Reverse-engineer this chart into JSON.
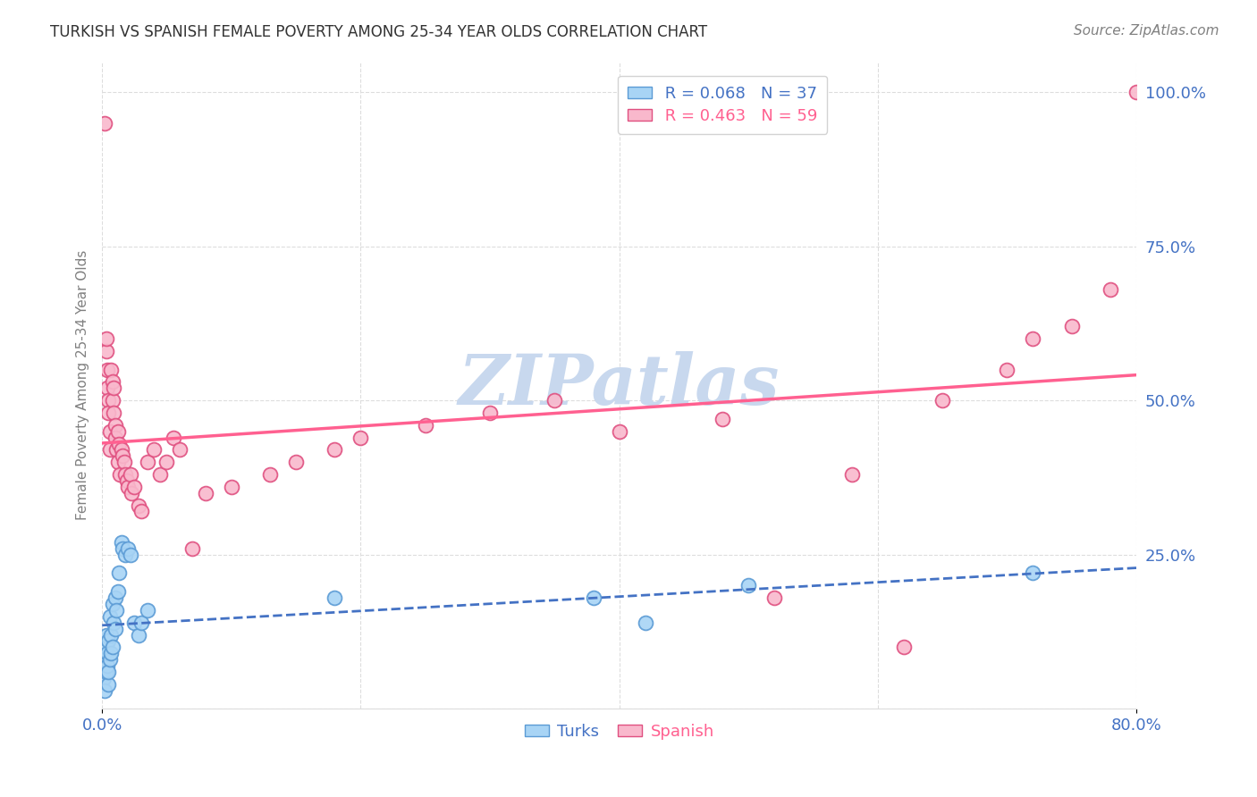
{
  "title": "TURKISH VS SPANISH FEMALE POVERTY AMONG 25-34 YEAR OLDS CORRELATION CHART",
  "source": "Source: ZipAtlas.com",
  "ylabel": "Female Poverty Among 25-34 Year Olds",
  "xlim": [
    0.0,
    0.8
  ],
  "ylim": [
    0.0,
    1.05
  ],
  "yticks_right": [
    0.0,
    0.25,
    0.5,
    0.75,
    1.0
  ],
  "yticklabels_right": [
    "",
    "25.0%",
    "50.0%",
    "75.0%",
    "100.0%"
  ],
  "turks_color": "#a8d4f5",
  "spanish_color": "#f9b8cc",
  "turks_edge_color": "#5b9bd5",
  "spanish_edge_color": "#e05080",
  "turks_line_color": "#4472C4",
  "spanish_line_color": "#FF6090",
  "turks_R": 0.068,
  "turks_N": 37,
  "spanish_R": 0.463,
  "spanish_N": 59,
  "watermark": "ZIPatlas",
  "watermark_color": "#c8d8ee",
  "background_color": "#ffffff",
  "grid_color": "#dddddd",
  "turks_x": [
    0.001,
    0.002,
    0.002,
    0.003,
    0.003,
    0.003,
    0.004,
    0.004,
    0.005,
    0.005,
    0.005,
    0.006,
    0.006,
    0.007,
    0.007,
    0.008,
    0.008,
    0.009,
    0.01,
    0.01,
    0.011,
    0.012,
    0.013,
    0.015,
    0.016,
    0.018,
    0.02,
    0.022,
    0.025,
    0.028,
    0.03,
    0.035,
    0.18,
    0.38,
    0.42,
    0.5,
    0.72
  ],
  "turks_y": [
    0.05,
    0.03,
    0.08,
    0.06,
    0.1,
    0.12,
    0.07,
    0.09,
    0.11,
    0.04,
    0.06,
    0.15,
    0.08,
    0.12,
    0.09,
    0.17,
    0.1,
    0.14,
    0.13,
    0.18,
    0.16,
    0.19,
    0.22,
    0.27,
    0.26,
    0.25,
    0.26,
    0.25,
    0.14,
    0.12,
    0.14,
    0.16,
    0.18,
    0.18,
    0.14,
    0.2,
    0.22
  ],
  "spanish_x": [
    0.002,
    0.003,
    0.003,
    0.004,
    0.004,
    0.005,
    0.005,
    0.006,
    0.006,
    0.007,
    0.008,
    0.008,
    0.009,
    0.009,
    0.01,
    0.01,
    0.011,
    0.012,
    0.012,
    0.013,
    0.014,
    0.015,
    0.016,
    0.017,
    0.018,
    0.019,
    0.02,
    0.022,
    0.023,
    0.025,
    0.028,
    0.03,
    0.035,
    0.04,
    0.045,
    0.05,
    0.055,
    0.06,
    0.07,
    0.08,
    0.1,
    0.13,
    0.15,
    0.18,
    0.2,
    0.25,
    0.3,
    0.35,
    0.4,
    0.48,
    0.52,
    0.58,
    0.62,
    0.65,
    0.7,
    0.72,
    0.75,
    0.78,
    0.8
  ],
  "spanish_y": [
    0.95,
    0.58,
    0.6,
    0.52,
    0.55,
    0.5,
    0.48,
    0.45,
    0.42,
    0.55,
    0.5,
    0.53,
    0.48,
    0.52,
    0.46,
    0.44,
    0.42,
    0.4,
    0.45,
    0.43,
    0.38,
    0.42,
    0.41,
    0.4,
    0.38,
    0.37,
    0.36,
    0.38,
    0.35,
    0.36,
    0.33,
    0.32,
    0.4,
    0.42,
    0.38,
    0.4,
    0.44,
    0.42,
    0.26,
    0.35,
    0.36,
    0.38,
    0.4,
    0.42,
    0.44,
    0.46,
    0.48,
    0.5,
    0.45,
    0.47,
    0.18,
    0.38,
    0.1,
    0.5,
    0.55,
    0.6,
    0.62,
    0.68,
    1.0
  ]
}
